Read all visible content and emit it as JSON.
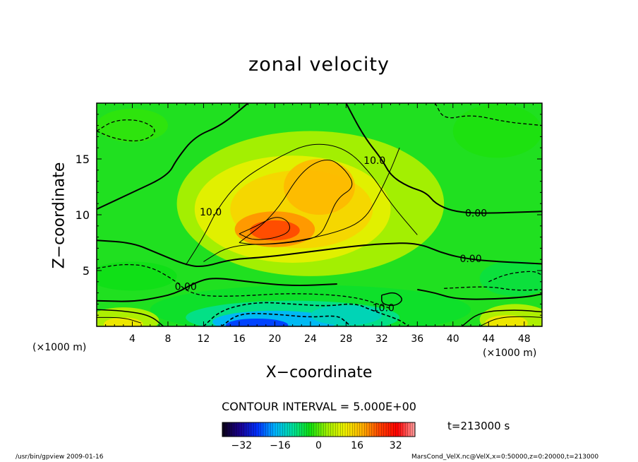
{
  "chart_data": {
    "type": "heatmap",
    "title": "zonal velocity",
    "xlabel": "X−coordinate",
    "ylabel": "Z−coordinate",
    "x_unit": "(×1000 m)",
    "y_unit": "(×1000 m)",
    "xlim": [
      0,
      50
    ],
    "ylim": [
      0,
      20
    ],
    "x_ticks": [
      4,
      8,
      12,
      16,
      20,
      24,
      28,
      32,
      36,
      40,
      44,
      48
    ],
    "y_ticks": [
      5,
      10,
      15
    ],
    "x_tick_labels": [
      "4",
      "8",
      "12",
      "16",
      "20",
      "24",
      "28",
      "32",
      "36",
      "40",
      "44",
      "48"
    ],
    "y_tick_labels": [
      "5",
      "10",
      "15"
    ],
    "contour_interval": "CONTOUR INTERVAL = 5.000E+00",
    "contour_labels": [
      {
        "text": "10.0",
        "x": 12.8,
        "y": 10.2
      },
      {
        "text": "10.0",
        "x": 31.2,
        "y": 14.8
      },
      {
        "text": "0.00",
        "x": 42.6,
        "y": 10.1
      },
      {
        "text": "0.00",
        "x": 42.0,
        "y": 6.0
      },
      {
        "text": "0.00",
        "x": 10.0,
        "y": 3.5
      },
      {
        "text": "10.0",
        "x": 32.2,
        "y": 1.6
      }
    ],
    "colorbar": {
      "min": -40,
      "max": 40,
      "tick_values": [
        -32,
        -16,
        0,
        16,
        32
      ],
      "tick_labels": [
        "−32",
        "−16",
        "0",
        "16",
        "32"
      ],
      "colors": [
        "#0a0014",
        "#1a0090",
        "#0030ff",
        "#00b4ff",
        "#00e0a0",
        "#10e010",
        "#a0f000",
        "#f0f000",
        "#ffb000",
        "#ff4000",
        "#ff0000",
        "#ffa0a0"
      ]
    },
    "time_label": "t=213000  s",
    "features": [
      {
        "kind": "max",
        "value": 25,
        "x": 20,
        "y": 8.5
      },
      {
        "kind": "max",
        "value": 17,
        "x": 24,
        "y": 11.5
      },
      {
        "kind": "min",
        "value": -25,
        "x": 18,
        "y": 0.2
      },
      {
        "kind": "min",
        "value": -15,
        "x": 26,
        "y": 1.0
      },
      {
        "kind": "max",
        "value": 12,
        "x": 3,
        "y": 0.3
      },
      {
        "kind": "max",
        "value": 12,
        "x": 47,
        "y": 0.5
      }
    ]
  },
  "footer": {
    "left": "/usr/bin/gpview   2009-01-16",
    "right": "MarsCond_VelX.nc@VelX,x=0:50000,z=0:20000,t=213000"
  }
}
